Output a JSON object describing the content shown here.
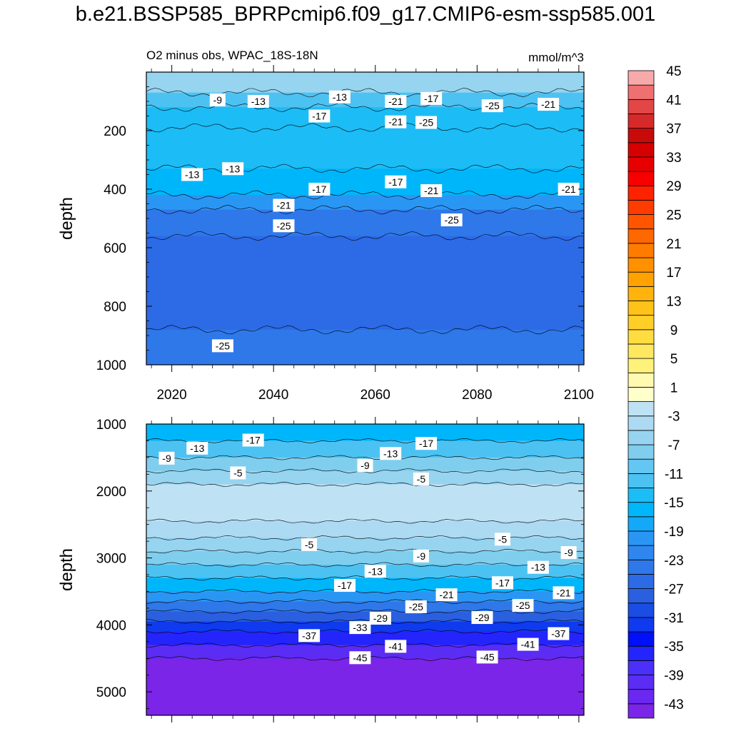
{
  "title": "b.e21.BSSP585_BPRPcmip6.f09_g17.CMIP6-esm-ssp585.001",
  "colors": {
    "palette": [
      "#7a25e8",
      "#6a28f0",
      "#5a2cf4",
      "#4a30f8",
      "#2424fc",
      "#0010f8",
      "#0f3aee",
      "#1a4de4",
      "#2a60e0",
      "#2c6ae6",
      "#2f78ea",
      "#2f86ee",
      "#2a96f4",
      "#14a8f8",
      "#00b6fb",
      "#1cbcf6",
      "#4cc2f2",
      "#64c6f2",
      "#80ceee",
      "#96d4f0",
      "#acdaf2",
      "#bee2f4",
      "#ffffcc",
      "#fffab0",
      "#fff27a",
      "#ffe860",
      "#ffdd40",
      "#ffcf28",
      "#ffc218",
      "#ffb30c",
      "#ffa200",
      "#ff9000",
      "#ff7c00",
      "#ff6800",
      "#ff5400",
      "#ff3c00",
      "#ff2200",
      "#f80000",
      "#e80000",
      "#d60000",
      "#c80a0a",
      "#d62a2a",
      "#e24646",
      "#ee7070",
      "#f8aaaa"
    ],
    "top_fill": "#2f78ea",
    "bottom_fill": "#7a25e8"
  },
  "chart_data": [
    {
      "type": "contour",
      "panel": "upper",
      "title_left": "O2 minus obs, WPAC_18S-18N",
      "title_right": "mmol/m^3",
      "xlabel": "",
      "ylabel": "depth",
      "xlim": [
        2015,
        2101
      ],
      "ylim": [
        1000,
        0
      ],
      "xticks": [
        2020,
        2040,
        2060,
        2080,
        2100
      ],
      "yticks": [
        200,
        400,
        600,
        800,
        1000
      ],
      "depth_bands": [
        {
          "from": 0,
          "to": 70,
          "value": -7
        },
        {
          "from": 70,
          "to": 120,
          "value": -13
        },
        {
          "from": 120,
          "to": 190,
          "value": -15
        },
        {
          "from": 190,
          "to": 330,
          "value": -14
        },
        {
          "from": 330,
          "to": 420,
          "value": -17
        },
        {
          "from": 420,
          "to": 470,
          "value": -21
        },
        {
          "from": 470,
          "to": 560,
          "value": -24
        },
        {
          "from": 560,
          "to": 880,
          "value": -27
        },
        {
          "from": 880,
          "to": 1000,
          "value": -25
        }
      ],
      "contour_labels": [
        {
          "text": "-9",
          "x": 2029,
          "y": 95
        },
        {
          "text": "-13",
          "x": 2037,
          "y": 100
        },
        {
          "text": "-13",
          "x": 2053,
          "y": 85
        },
        {
          "text": "-21",
          "x": 2064,
          "y": 100
        },
        {
          "text": "-17",
          "x": 2071,
          "y": 90
        },
        {
          "text": "-25",
          "x": 2083,
          "y": 115
        },
        {
          "text": "-21",
          "x": 2094,
          "y": 110
        },
        {
          "text": "-17",
          "x": 2049,
          "y": 150
        },
        {
          "text": "-21",
          "x": 2064,
          "y": 170
        },
        {
          "text": "-25",
          "x": 2070,
          "y": 172
        },
        {
          "text": "-13",
          "x": 2032,
          "y": 330
        },
        {
          "text": "-13",
          "x": 2024,
          "y": 350
        },
        {
          "text": "-17",
          "x": 2064,
          "y": 375
        },
        {
          "text": "-17",
          "x": 2049,
          "y": 400
        },
        {
          "text": "-21",
          "x": 2071,
          "y": 405
        },
        {
          "text": "-21",
          "x": 2098,
          "y": 400
        },
        {
          "text": "-21",
          "x": 2042,
          "y": 455
        },
        {
          "text": "-25",
          "x": 2042,
          "y": 525
        },
        {
          "text": "-25",
          "x": 2075,
          "y": 505
        },
        {
          "text": "-25",
          "x": 2030,
          "y": 935
        }
      ]
    },
    {
      "type": "contour",
      "panel": "lower",
      "xlabel": "",
      "ylabel": "depth",
      "xlim": [
        2015,
        2101
      ],
      "ylim": [
        5350,
        1000
      ],
      "yticks": [
        1000,
        2000,
        3000,
        4000,
        5000
      ],
      "depth_bands": [
        {
          "from": 1000,
          "to": 1250,
          "value": -17
        },
        {
          "from": 1250,
          "to": 1500,
          "value": -13
        },
        {
          "from": 1500,
          "to": 1700,
          "value": -9
        },
        {
          "from": 1700,
          "to": 1900,
          "value": -7
        },
        {
          "from": 1900,
          "to": 2450,
          "value": -3
        },
        {
          "from": 2450,
          "to": 2700,
          "value": -5
        },
        {
          "from": 2700,
          "to": 2900,
          "value": -7
        },
        {
          "from": 2900,
          "to": 3100,
          "value": -9
        },
        {
          "from": 3100,
          "to": 3300,
          "value": -13
        },
        {
          "from": 3300,
          "to": 3500,
          "value": -17
        },
        {
          "from": 3500,
          "to": 3650,
          "value": -21
        },
        {
          "from": 3650,
          "to": 3800,
          "value": -25
        },
        {
          "from": 3800,
          "to": 3950,
          "value": -29
        },
        {
          "from": 3950,
          "to": 4100,
          "value": -33
        },
        {
          "from": 4100,
          "to": 4300,
          "value": -37
        },
        {
          "from": 4300,
          "to": 4500,
          "value": -41
        },
        {
          "from": 4500,
          "to": 5350,
          "value": -45
        }
      ],
      "contour_labels": [
        {
          "text": "-9",
          "x": 2019,
          "y": 1510
        },
        {
          "text": "-13",
          "x": 2025,
          "y": 1360
        },
        {
          "text": "-17",
          "x": 2036,
          "y": 1240
        },
        {
          "text": "-5",
          "x": 2033,
          "y": 1730
        },
        {
          "text": "-9",
          "x": 2058,
          "y": 1620
        },
        {
          "text": "-13",
          "x": 2063,
          "y": 1440
        },
        {
          "text": "-17",
          "x": 2070,
          "y": 1290
        },
        {
          "text": "-5",
          "x": 2069,
          "y": 1820
        },
        {
          "text": "-5",
          "x": 2047,
          "y": 2800
        },
        {
          "text": "-5",
          "x": 2085,
          "y": 2720
        },
        {
          "text": "-9",
          "x": 2069,
          "y": 2970
        },
        {
          "text": "-9",
          "x": 2098,
          "y": 2920
        },
        {
          "text": "-13",
          "x": 2060,
          "y": 3200
        },
        {
          "text": "-13",
          "x": 2092,
          "y": 3140
        },
        {
          "text": "-17",
          "x": 2054,
          "y": 3410
        },
        {
          "text": "-17",
          "x": 2085,
          "y": 3370
        },
        {
          "text": "-21",
          "x": 2074,
          "y": 3550
        },
        {
          "text": "-21",
          "x": 2097,
          "y": 3520
        },
        {
          "text": "-25",
          "x": 2068,
          "y": 3730
        },
        {
          "text": "-25",
          "x": 2089,
          "y": 3710
        },
        {
          "text": "-29",
          "x": 2061,
          "y": 3900
        },
        {
          "text": "-29",
          "x": 2081,
          "y": 3890
        },
        {
          "text": "-33",
          "x": 2057,
          "y": 4040
        },
        {
          "text": "-37",
          "x": 2047,
          "y": 4160
        },
        {
          "text": "-37",
          "x": 2096,
          "y": 4130
        },
        {
          "text": "-41",
          "x": 2064,
          "y": 4320
        },
        {
          "text": "-41",
          "x": 2090,
          "y": 4290
        },
        {
          "text": "-45",
          "x": 2057,
          "y": 4490
        },
        {
          "text": "-45",
          "x": 2082,
          "y": 4480
        }
      ]
    }
  ],
  "colorbar": {
    "levels": [
      -45,
      -43,
      -41,
      -39,
      -37,
      -35,
      -33,
      -31,
      -29,
      -27,
      -25,
      -23,
      -21,
      -19,
      -17,
      -15,
      -13,
      -11,
      -9,
      -7,
      -5,
      -3,
      -1,
      1,
      3,
      5,
      7,
      9,
      11,
      13,
      15,
      17,
      19,
      21,
      23,
      25,
      27,
      29,
      31,
      33,
      35,
      37,
      39,
      41,
      43,
      45
    ],
    "labels": [
      "45",
      "41",
      "37",
      "33",
      "29",
      "25",
      "21",
      "17",
      "13",
      "9",
      "5",
      "1",
      "-3",
      "-7",
      "-11",
      "-15",
      "-19",
      "-23",
      "-27",
      "-31",
      "-35",
      "-39",
      "-43"
    ]
  }
}
